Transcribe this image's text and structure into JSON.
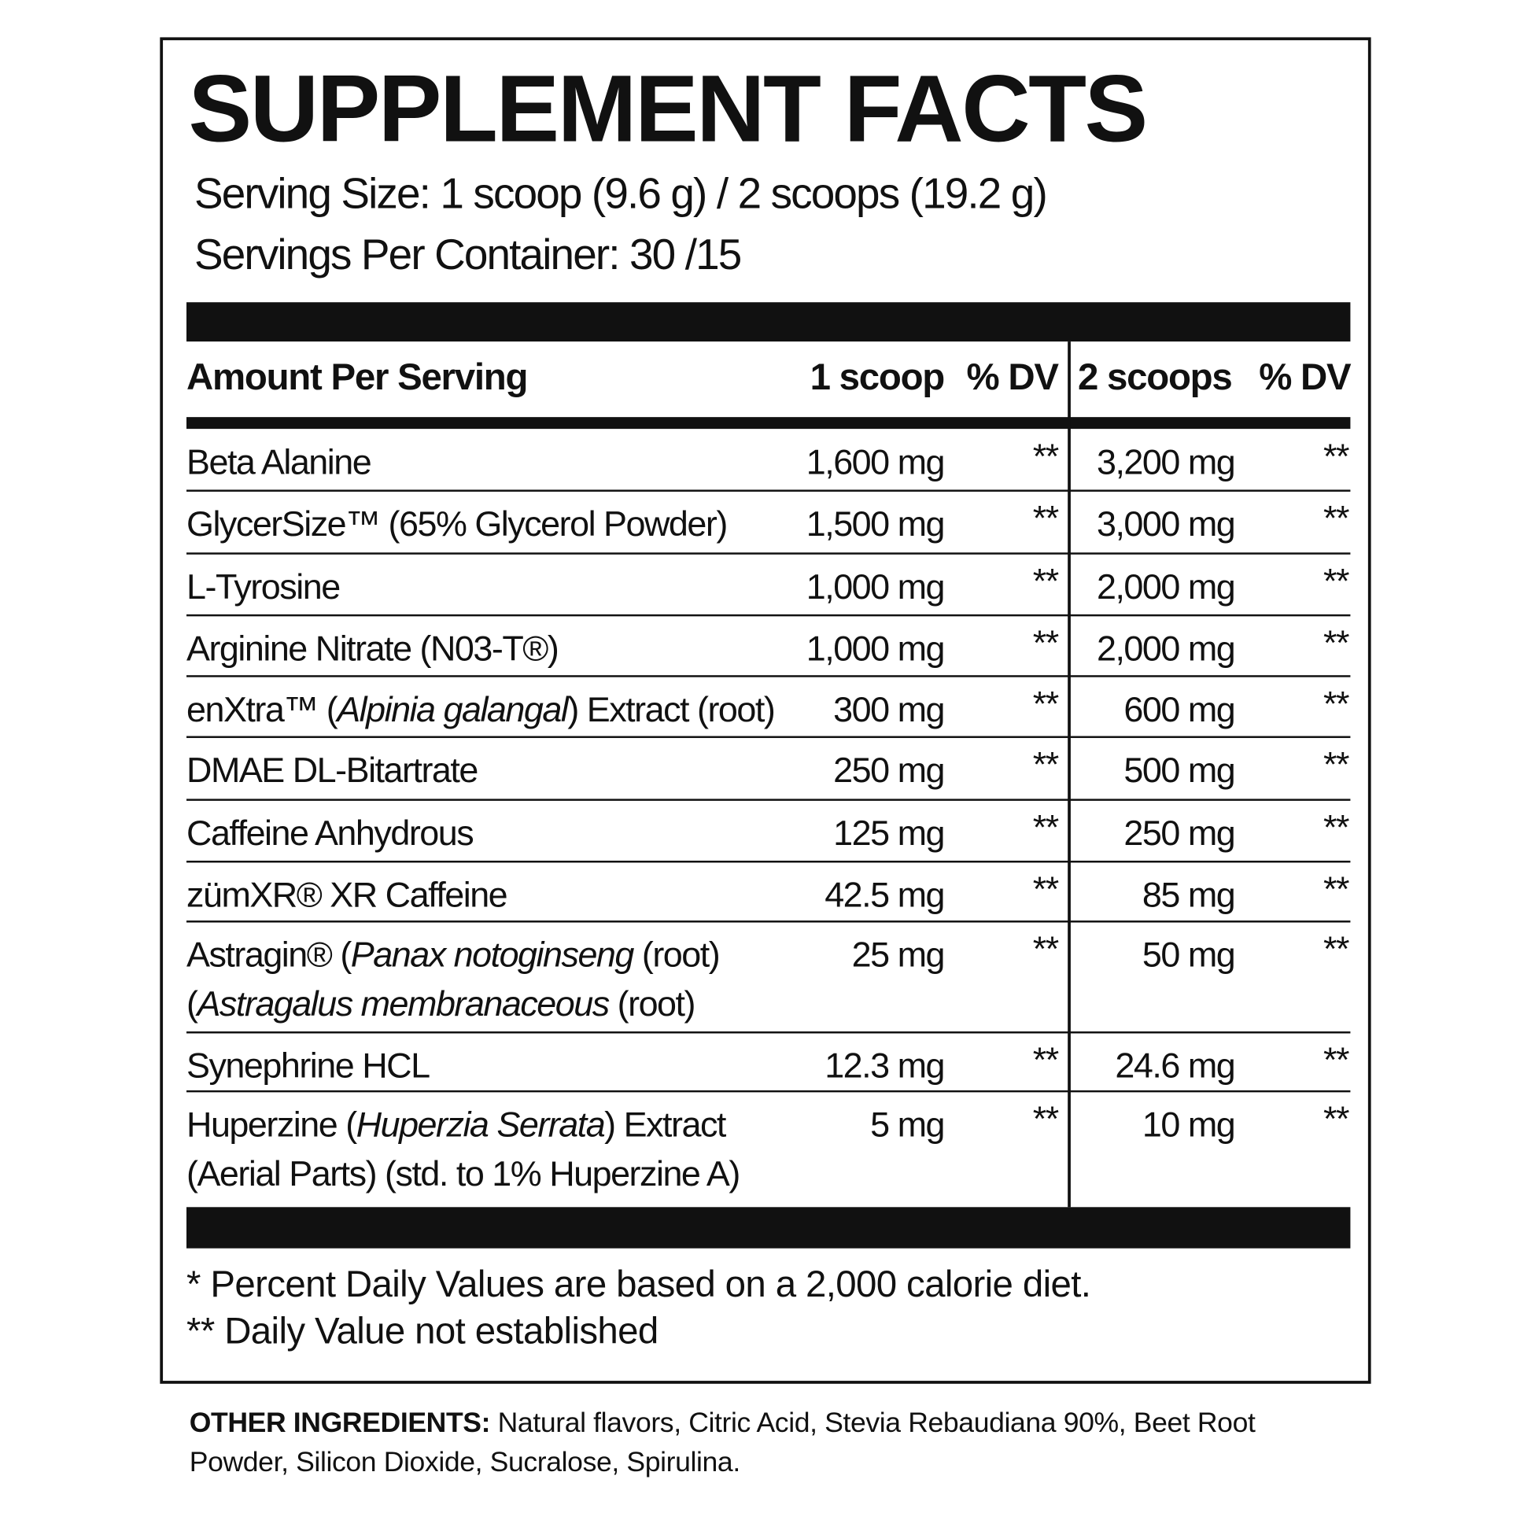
{
  "header": {
    "title": "SUPPLEMENT FACTS",
    "serving_size": "Serving Size: 1 scoop (9.6 g) / 2 scoops (19.2 g)",
    "servings_per_container": "Servings Per Container: 30 /15"
  },
  "table": {
    "columns": [
      "Amount Per Serving",
      "1 scoop",
      "% DV",
      "2 scoops",
      "% DV"
    ],
    "rows": [
      {
        "name": [
          [
            "Beta Alanine"
          ]
        ],
        "amount_1": "1,600 mg",
        "dv_1": "**",
        "amount_2": "3,200 mg",
        "dv_2": "**"
      },
      {
        "name": [
          [
            "GlycerSize™ (65% Glycerol Powder)"
          ]
        ],
        "amount_1": "1,500 mg",
        "dv_1": "**",
        "amount_2": "3,000 mg",
        "dv_2": "**"
      },
      {
        "name": [
          [
            "L-Tyrosine"
          ]
        ],
        "amount_1": "1,000 mg",
        "dv_1": "**",
        "amount_2": "2,000 mg",
        "dv_2": "**"
      },
      {
        "name": [
          [
            "Arginine Nitrate (N03-T®)"
          ]
        ],
        "amount_1": "1,000 mg",
        "dv_1": "**",
        "amount_2": "2,000 mg",
        "dv_2": "**"
      },
      {
        "name": [
          [
            "enXtra™ (",
            {
              "text": "Alpinia galangal",
              "italic": true
            },
            ") Extract (root)"
          ]
        ],
        "amount_1": "300 mg",
        "dv_1": "**",
        "amount_2": "600 mg",
        "dv_2": "**"
      },
      {
        "name": [
          [
            "DMAE DL-Bitartrate"
          ]
        ],
        "amount_1": "250 mg",
        "dv_1": "**",
        "amount_2": "500 mg",
        "dv_2": "**"
      },
      {
        "name": [
          [
            "Caffeine Anhydrous"
          ]
        ],
        "amount_1": "125 mg",
        "dv_1": "**",
        "amount_2": "250 mg",
        "dv_2": "**"
      },
      {
        "name": [
          [
            "zümXR® XR Caffeine"
          ]
        ],
        "amount_1": "42.5 mg",
        "dv_1": "**",
        "amount_2": "85 mg",
        "dv_2": "**"
      },
      {
        "name": [
          [
            "Astragin® (",
            {
              "text": "Panax notoginseng",
              "italic": true
            },
            " (root)"
          ],
          [
            "(",
            {
              "text": "Astragalus membranaceous",
              "italic": true
            },
            " (root)"
          ]
        ],
        "amount_1": "25 mg",
        "dv_1": "**",
        "amount_2": "50 mg",
        "dv_2": "**"
      },
      {
        "name": [
          [
            "Synephrine HCL"
          ]
        ],
        "amount_1": "12.3 mg",
        "dv_1": "**",
        "amount_2": "24.6 mg",
        "dv_2": "**"
      },
      {
        "name": [
          [
            "Huperzine (",
            {
              "text": "Huperzia Serrata",
              "italic": true
            },
            ") Extract"
          ],
          [
            "(Aerial Parts) (std. to 1% Huperzine A)"
          ]
        ],
        "amount_1": "5 mg",
        "dv_1": "**",
        "amount_2": "10 mg",
        "dv_2": "**"
      }
    ]
  },
  "footnotes": [
    "* Percent Daily Values are based on a 2,000 calorie diet.",
    "** Daily Value not established"
  ],
  "other_ingredients": {
    "label": "OTHER INGREDIENTS:",
    "text": "Natural flavors, Citric Acid, Stevia Rebaudiana 90%, Beet Root Powder, Silicon Dioxide, Sucralose, Spirulina."
  }
}
